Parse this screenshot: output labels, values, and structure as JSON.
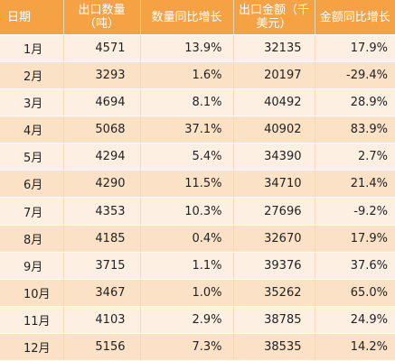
{
  "headers": [
    "日期",
    "出口数量（吨）",
    "数量同比增长",
    "出口金额（千美元）",
    "金额同比增长"
  ],
  "rows": [
    {
      "month": "1月",
      "qty": "4571",
      "qty_yoy": "13.9%",
      "amount": "32135",
      "amount_yoy": "17.9%"
    },
    {
      "month": "2月",
      "qty": "3293",
      "qty_yoy": "1.6%",
      "amount": "20197",
      "amount_yoy": "-29.4%"
    },
    {
      "month": "3月",
      "qty": "4694",
      "qty_yoy": "8.1%",
      "amount": "40492",
      "amount_yoy": "28.9%"
    },
    {
      "month": "4月",
      "qty": "5068",
      "qty_yoy": "37.1%",
      "amount": "40902",
      "amount_yoy": "83.9%"
    },
    {
      "month": "5月",
      "qty": "4294",
      "qty_yoy": "5.4%",
      "amount": "34390",
      "amount_yoy": "2.7%"
    },
    {
      "month": "6月",
      "qty": "4290",
      "qty_yoy": "11.5%",
      "amount": "34710",
      "amount_yoy": "21.4%"
    },
    {
      "month": "7月",
      "qty": "4353",
      "qty_yoy": "10.3%",
      "amount": "27696",
      "amount_yoy": "-9.2%"
    },
    {
      "month": "8月",
      "qty": "4185",
      "qty_yoy": "0.4%",
      "amount": "32670",
      "amount_yoy": "17.9%"
    },
    {
      "month": "9月",
      "qty": "3715",
      "qty_yoy": "1.1%",
      "amount": "39376",
      "amount_yoy": "37.6%"
    },
    {
      "month": "10月",
      "qty": "3467",
      "qty_yoy": "1.0%",
      "amount": "35262",
      "amount_yoy": "65.0%"
    },
    {
      "month": "11月",
      "qty": "4103",
      "qty_yoy": "2.9%",
      "amount": "38785",
      "amount_yoy": "24.9%"
    },
    {
      "month": "12月",
      "qty": "5156",
      "qty_yoy": "7.3%",
      "amount": "38535",
      "amount_yoy": "14.2%"
    }
  ],
  "colors": {
    "header_bg": "#f5a245",
    "header_text": "#ffffff",
    "row_light": "#fdf0e2",
    "row_dark": "#fbe1c6"
  }
}
